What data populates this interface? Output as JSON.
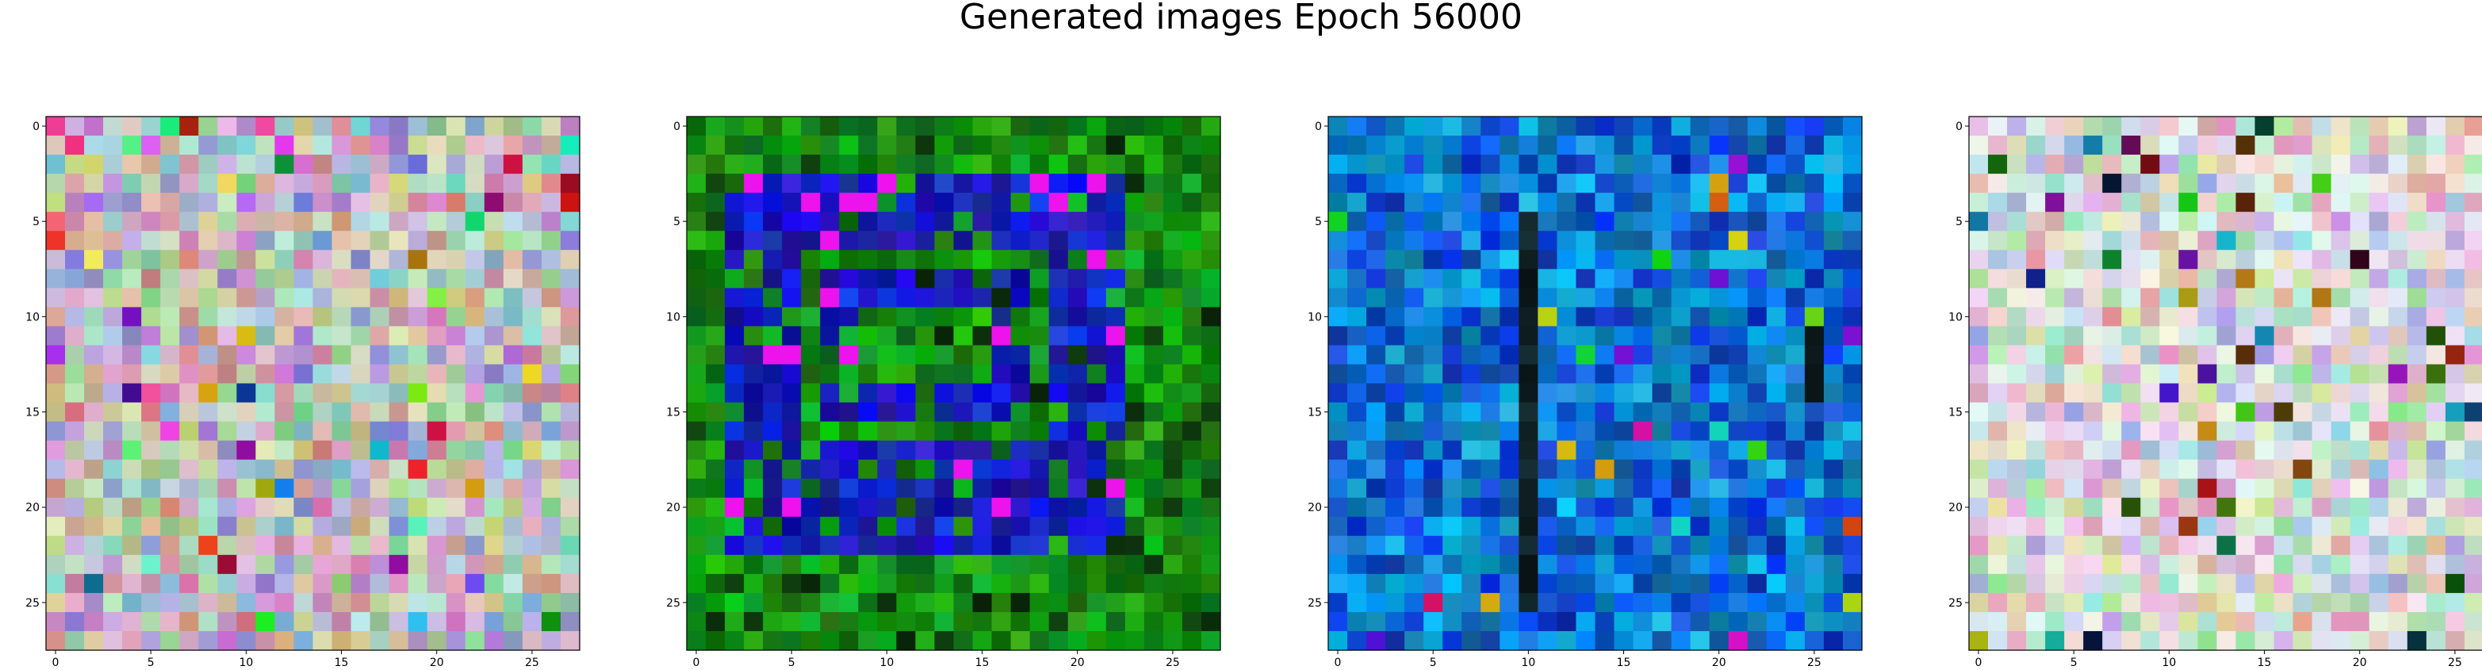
{
  "figure": {
    "title": "Generated images Epoch 56000"
  },
  "chart_data": [
    {
      "type": "heatmap",
      "style": "rgb-image",
      "palette": "pastel-noise",
      "grid_size": [
        28,
        28
      ],
      "xlim": [
        -0.5,
        27.5
      ],
      "ylim": [
        27.5,
        -0.5
      ],
      "xticks": [
        0,
        5,
        10,
        15,
        20,
        25
      ],
      "yticks": [
        0,
        5,
        10,
        15,
        20,
        25
      ],
      "grid": false,
      "description_values": "28x28 pixel image of pastel noise with scattered saturated pixels"
    },
    {
      "type": "heatmap",
      "style": "rgb-image",
      "palette": "green-blue-squares",
      "grid_size": [
        28,
        28
      ],
      "xlim": [
        -0.5,
        27.5
      ],
      "ylim": [
        27.5,
        -0.5
      ],
      "xticks": [
        0,
        5,
        10,
        15,
        20,
        25
      ],
      "yticks": [
        0,
        5,
        10,
        15,
        20,
        25
      ],
      "grid": false,
      "description_values": "green field with a blue rectangular region inside"
    },
    {
      "type": "heatmap",
      "style": "rgb-image",
      "palette": "cyan-blue-stripe",
      "grid_size": [
        28,
        28
      ],
      "xlim": [
        -0.5,
        27.5
      ],
      "ylim": [
        27.5,
        -0.5
      ],
      "xticks": [
        0,
        5,
        10,
        15,
        20,
        25
      ],
      "yticks": [
        0,
        5,
        10,
        15,
        20,
        25
      ],
      "grid": false,
      "description_values": "cyan/blue noise with a dark vertical stripe near x=10"
    },
    {
      "type": "heatmap",
      "style": "rgb-image",
      "palette": "pastel-light",
      "grid_size": [
        28,
        28
      ],
      "xlim": [
        -0.5,
        27.5
      ],
      "ylim": [
        27.5,
        -0.5
      ],
      "xticks": [
        0,
        5,
        10,
        15,
        20,
        25
      ],
      "yticks": [
        0,
        5,
        10,
        15,
        20,
        25
      ],
      "grid": false,
      "description_values": "light pastel noise with dark pixel accents"
    }
  ]
}
